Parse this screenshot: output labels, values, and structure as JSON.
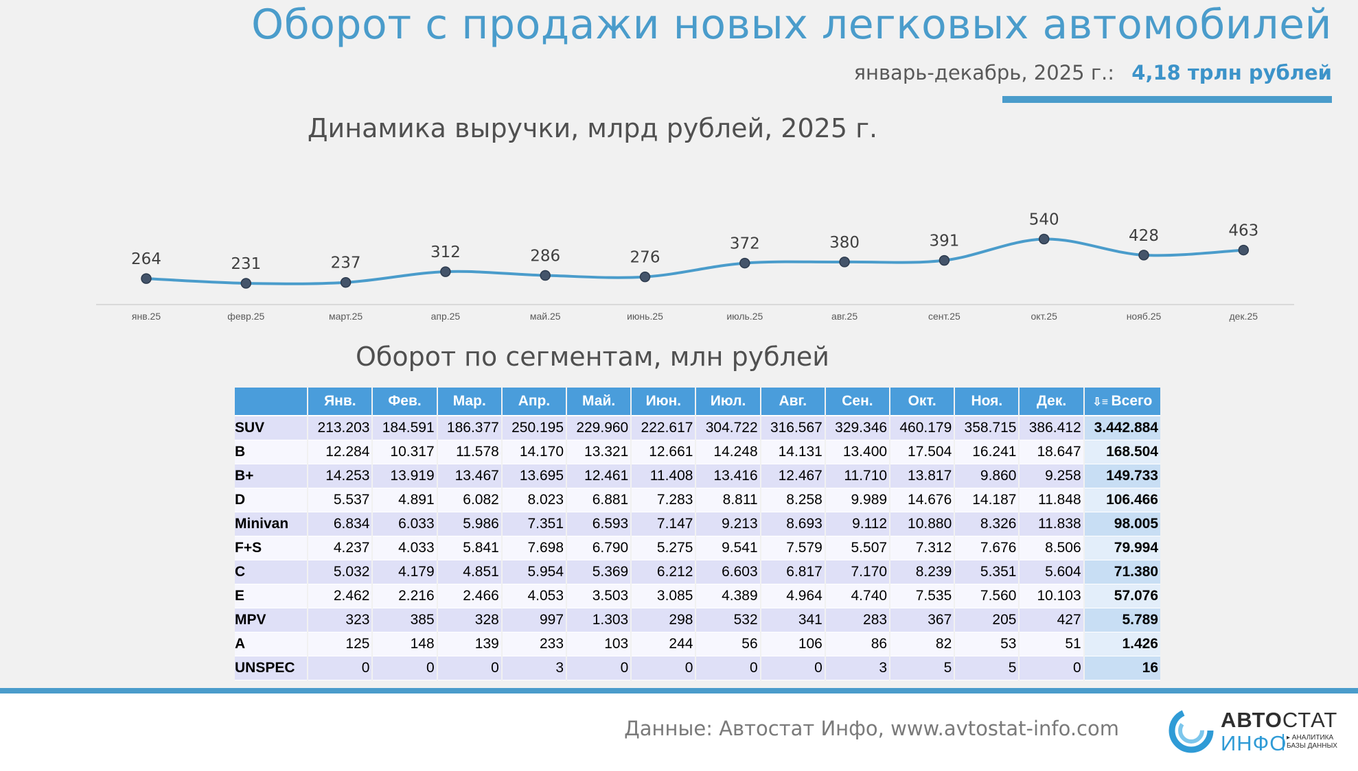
{
  "header": {
    "title": "Оборот с продажи новых легковых автомобилей",
    "period_label": "январь-декабрь, 2025 г.:",
    "total_label": "4,18 трлн рублей"
  },
  "chart_data": {
    "type": "line",
    "title": "Динамика выручки, млрд рублей, 2025 г.",
    "categories": [
      "янв.25",
      "февр.25",
      "март.25",
      "апр.25",
      "май.25",
      "июнь.25",
      "июль.25",
      "авг.25",
      "сент.25",
      "окт.25",
      "нояб.25",
      "дек.25"
    ],
    "values": [
      264,
      231,
      237,
      312,
      286,
      276,
      372,
      380,
      391,
      540,
      428,
      463
    ],
    "xlabel": "",
    "ylabel": "",
    "ylim": [
      0,
      600
    ],
    "colors": {
      "line": "#4a9ccb",
      "marker": "#44546a"
    }
  },
  "table": {
    "title": "Оборот по сегментам, млн рублей",
    "sort_icon": "sort-descending-icon",
    "headers": [
      "",
      "Янв.",
      "Фев.",
      "Мар.",
      "Апр.",
      "Май.",
      "Июн.",
      "Июл.",
      "Авг.",
      "Сен.",
      "Окт.",
      "Ноя.",
      "Дек.",
      "Всего"
    ],
    "rows": [
      [
        "SUV",
        "213.203",
        "184.591",
        "186.377",
        "250.195",
        "229.960",
        "222.617",
        "304.722",
        "316.567",
        "329.346",
        "460.179",
        "358.715",
        "386.412",
        "3.442.884"
      ],
      [
        "B",
        "12.284",
        "10.317",
        "11.578",
        "14.170",
        "13.321",
        "12.661",
        "14.248",
        "14.131",
        "13.400",
        "17.504",
        "16.241",
        "18.647",
        "168.504"
      ],
      [
        "B+",
        "14.253",
        "13.919",
        "13.467",
        "13.695",
        "12.461",
        "11.408",
        "13.416",
        "12.467",
        "11.710",
        "13.817",
        "9.860",
        "9.258",
        "149.733"
      ],
      [
        "D",
        "5.537",
        "4.891",
        "6.082",
        "8.023",
        "6.881",
        "7.283",
        "8.811",
        "8.258",
        "9.989",
        "14.676",
        "14.187",
        "11.848",
        "106.466"
      ],
      [
        "Minivan",
        "6.834",
        "6.033",
        "5.986",
        "7.351",
        "6.593",
        "7.147",
        "9.213",
        "8.693",
        "9.112",
        "10.880",
        "8.326",
        "11.838",
        "98.005"
      ],
      [
        "F+S",
        "4.237",
        "4.033",
        "5.841",
        "7.698",
        "6.790",
        "5.275",
        "9.541",
        "7.579",
        "5.507",
        "7.312",
        "7.676",
        "8.506",
        "79.994"
      ],
      [
        "C",
        "5.032",
        "4.179",
        "4.851",
        "5.954",
        "5.369",
        "6.212",
        "6.603",
        "6.817",
        "7.170",
        "8.239",
        "5.351",
        "5.604",
        "71.380"
      ],
      [
        "E",
        "2.462",
        "2.216",
        "2.466",
        "4.053",
        "3.503",
        "3.085",
        "4.389",
        "4.964",
        "4.740",
        "7.535",
        "7.560",
        "10.103",
        "57.076"
      ],
      [
        "MPV",
        "323",
        "385",
        "328",
        "997",
        "1.303",
        "298",
        "532",
        "341",
        "283",
        "367",
        "205",
        "427",
        "5.789"
      ],
      [
        "A",
        "125",
        "148",
        "139",
        "233",
        "103",
        "244",
        "56",
        "106",
        "86",
        "82",
        "53",
        "51",
        "1.426"
      ],
      [
        "UNSPEC",
        "0",
        "0",
        "0",
        "3",
        "0",
        "0",
        "0",
        "0",
        "3",
        "5",
        "5",
        "0",
        "16"
      ]
    ]
  },
  "footer": {
    "source": "Данные: Автостат Инфо, www.avtostat-info.com",
    "logo_line1_bold": "АВТО",
    "logo_line1_thin": "СТАТ",
    "logo_line2": "ИНФО",
    "logo_tag_1": "▸ АНАЛИТИКА",
    "logo_tag_2": "БАЗЫ ДАННЫХ"
  }
}
